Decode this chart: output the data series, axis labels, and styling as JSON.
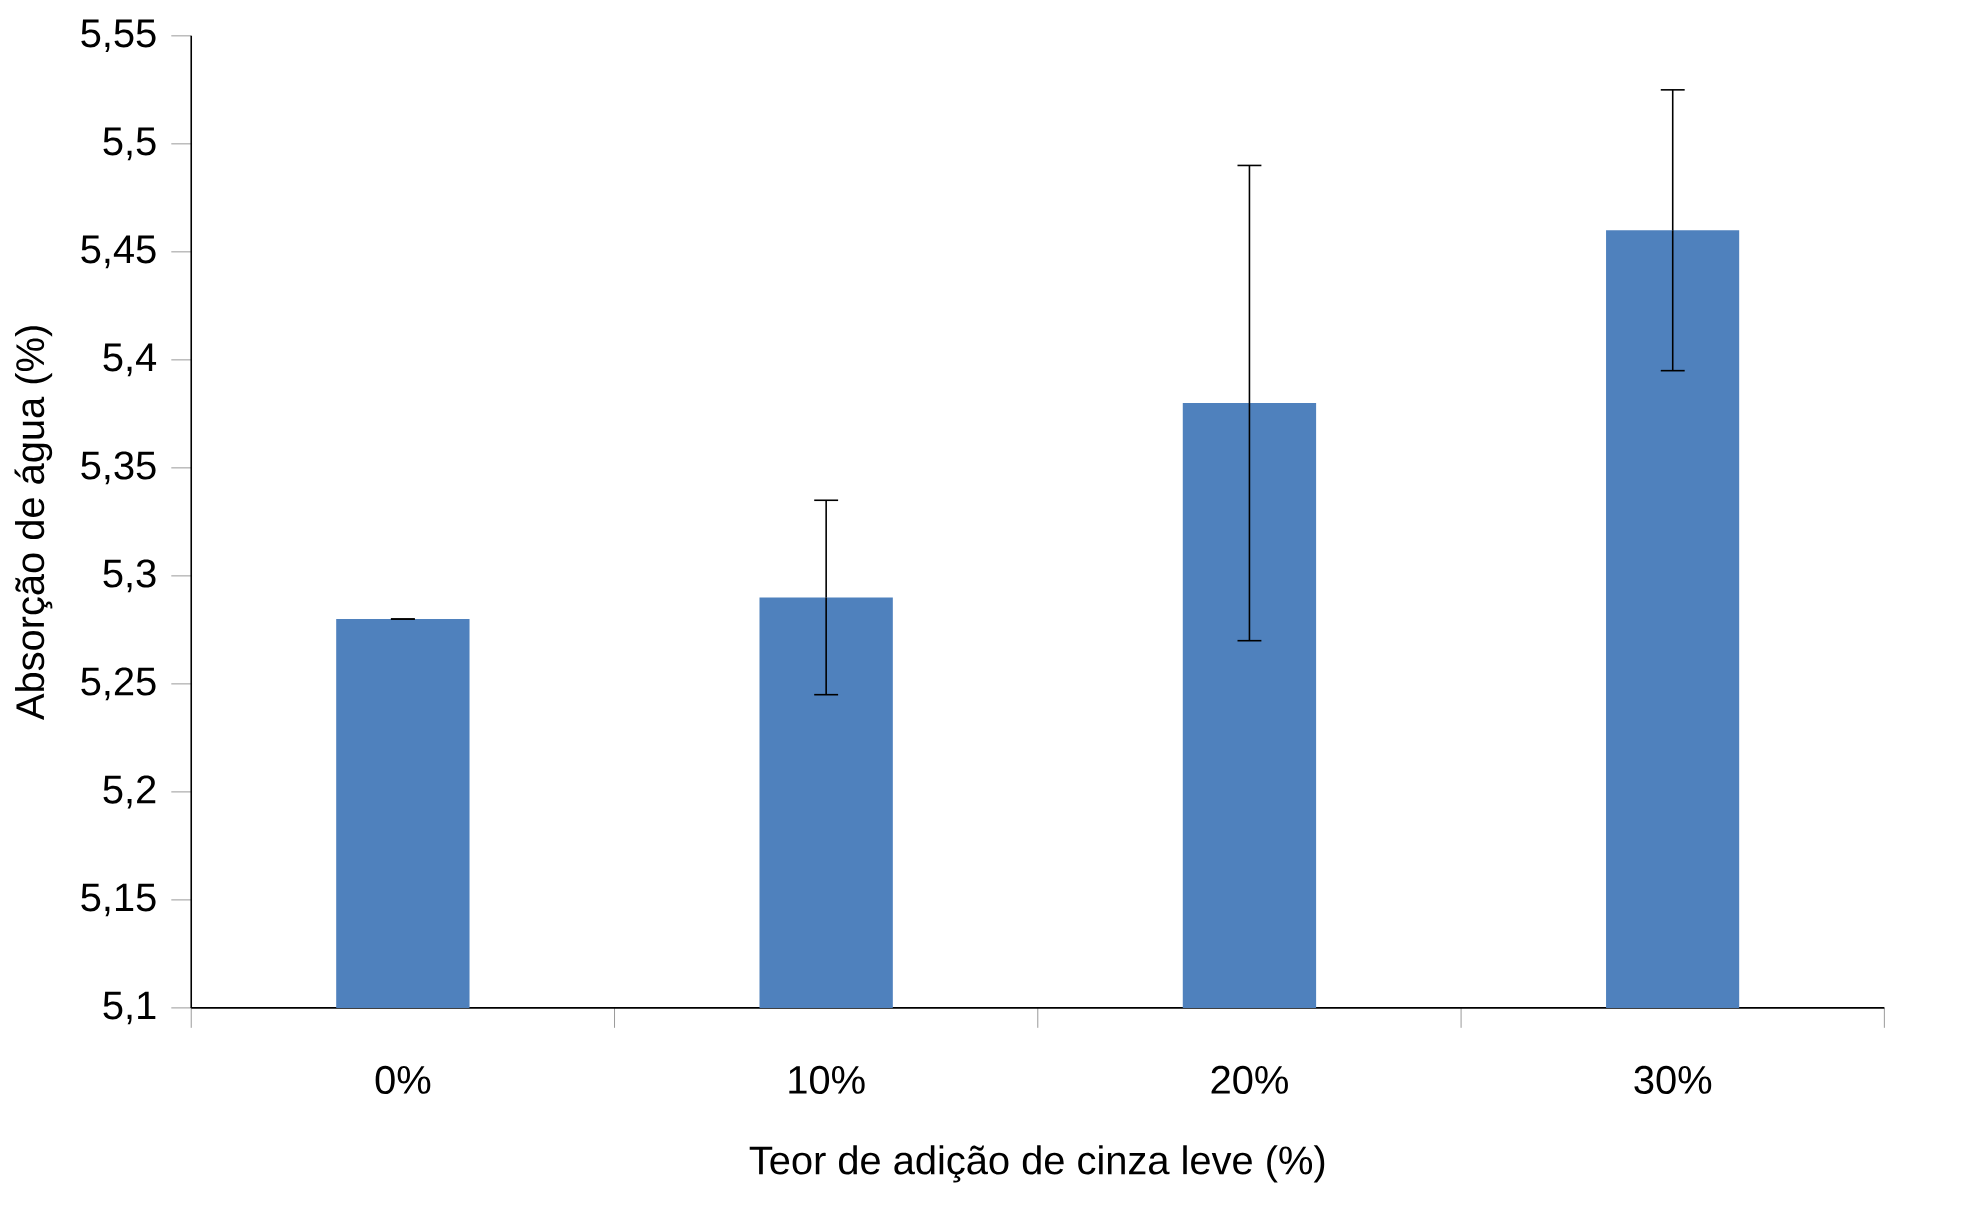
{
  "chart_data": {
    "type": "bar",
    "xlabel": "Teor de adição de cinza leve (%)",
    "ylabel": "Absorção de água (%)",
    "categories": [
      "0%",
      "10%",
      "20%",
      "30%"
    ],
    "values": [
      5.28,
      5.29,
      5.38,
      5.46
    ],
    "errors": [
      0,
      [
        5.245,
        5.335
      ],
      [
        5.27,
        5.49
      ],
      [
        5.395,
        5.525
      ]
    ],
    "color": "#4f81bd",
    "ylim": [
      5.1,
      5.55
    ],
    "yticks": [
      {
        "value": 5.1,
        "label": "5,1"
      },
      {
        "value": 5.15,
        "label": "5,15"
      },
      {
        "value": 5.2,
        "label": "5,2"
      },
      {
        "value": 5.25,
        "label": "5,25"
      },
      {
        "value": 5.3,
        "label": "5,3"
      },
      {
        "value": 5.35,
        "label": "5,35"
      },
      {
        "value": 5.4,
        "label": "5,4"
      },
      {
        "value": 5.45,
        "label": "5,45"
      },
      {
        "value": 5.5,
        "label": "5,5"
      },
      {
        "value": 5.55,
        "label": "5,55"
      }
    ]
  }
}
